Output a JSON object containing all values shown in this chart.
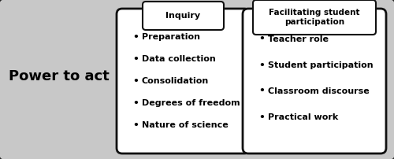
{
  "title": "Power to act",
  "inquiry_label": "Inquiry",
  "inquiry_items": [
    "Preparation",
    "Data collection",
    "Consolidation",
    "Degrees of freedom",
    "Nature of science"
  ],
  "facilitating_label": "Facilitating student\nparticipation",
  "facilitating_items": [
    "Teacher role",
    "Student participation",
    "Classroom discourse",
    "Practical work"
  ],
  "bg_color": "#c8c8c8",
  "outer_bg": "#c8c8c8",
  "box_bg": "#ffffff",
  "text_color": "#000000",
  "figsize": [
    5.0,
    2.02
  ],
  "dpi": 100
}
